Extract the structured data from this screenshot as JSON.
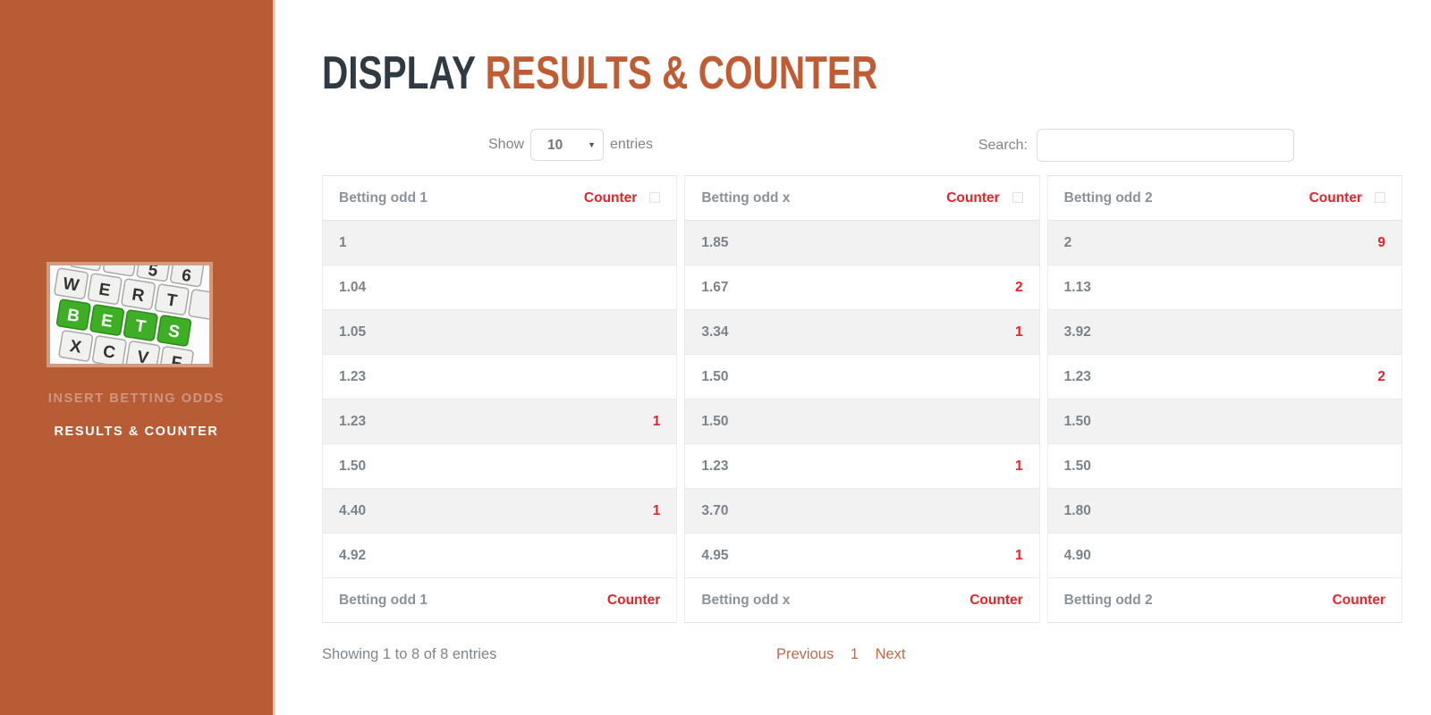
{
  "sidebar": {
    "logo": "bets-keyboard-image",
    "nav": [
      {
        "label": "INSERT BETTING ODDS",
        "active": false
      },
      {
        "label": "RESULTS & COUNTER",
        "active": true
      }
    ]
  },
  "header": {
    "title_primary": "DISPLAY",
    "title_accent": "RESULTS & COUNTER"
  },
  "controls": {
    "show_label": "Show",
    "page_length": "10",
    "entries_label": "entries",
    "search_label": "Search:",
    "search_value": "",
    "search_placeholder": ""
  },
  "table": {
    "groups": [
      {
        "odd_header": "Betting odd 1",
        "counter_header": "Counter",
        "cells": [
          {
            "odd": "1",
            "counter": ""
          },
          {
            "odd": "1.04",
            "counter": ""
          },
          {
            "odd": "1.05",
            "counter": ""
          },
          {
            "odd": "1.23",
            "counter": ""
          },
          {
            "odd": "1.23",
            "counter": "1"
          },
          {
            "odd": "1.50",
            "counter": ""
          },
          {
            "odd": "4.40",
            "counter": "1"
          },
          {
            "odd": "4.92",
            "counter": ""
          }
        ]
      },
      {
        "odd_header": "Betting odd x",
        "counter_header": "Counter",
        "cells": [
          {
            "odd": "1.85",
            "counter": ""
          },
          {
            "odd": "1.67",
            "counter": "2"
          },
          {
            "odd": "3.34",
            "counter": "1"
          },
          {
            "odd": "1.50",
            "counter": ""
          },
          {
            "odd": "1.50",
            "counter": ""
          },
          {
            "odd": "1.23",
            "counter": "1"
          },
          {
            "odd": "3.70",
            "counter": ""
          },
          {
            "odd": "4.95",
            "counter": "1"
          }
        ]
      },
      {
        "odd_header": "Betting odd 2",
        "counter_header": "Counter",
        "cells": [
          {
            "odd": "2",
            "counter": "9"
          },
          {
            "odd": "1.13",
            "counter": ""
          },
          {
            "odd": "3.92",
            "counter": ""
          },
          {
            "odd": "1.23",
            "counter": "2"
          },
          {
            "odd": "1.50",
            "counter": ""
          },
          {
            "odd": "1.50",
            "counter": ""
          },
          {
            "odd": "1.80",
            "counter": ""
          },
          {
            "odd": "4.90",
            "counter": ""
          }
        ]
      }
    ]
  },
  "footer": {
    "info": "Showing 1 to 8 of 8 entries",
    "pagination": {
      "previous": "Previous",
      "current": "1",
      "next": "Next"
    }
  },
  "colors": {
    "sidebar_bg": "#b85c36",
    "title_dark": "#2f3a43",
    "title_accent": "#c05c33",
    "counter_red": "#ee2027",
    "pagination_link": "#bf6a47",
    "row_stripe": "#f2f2f2",
    "key_green": "#3fae27"
  }
}
